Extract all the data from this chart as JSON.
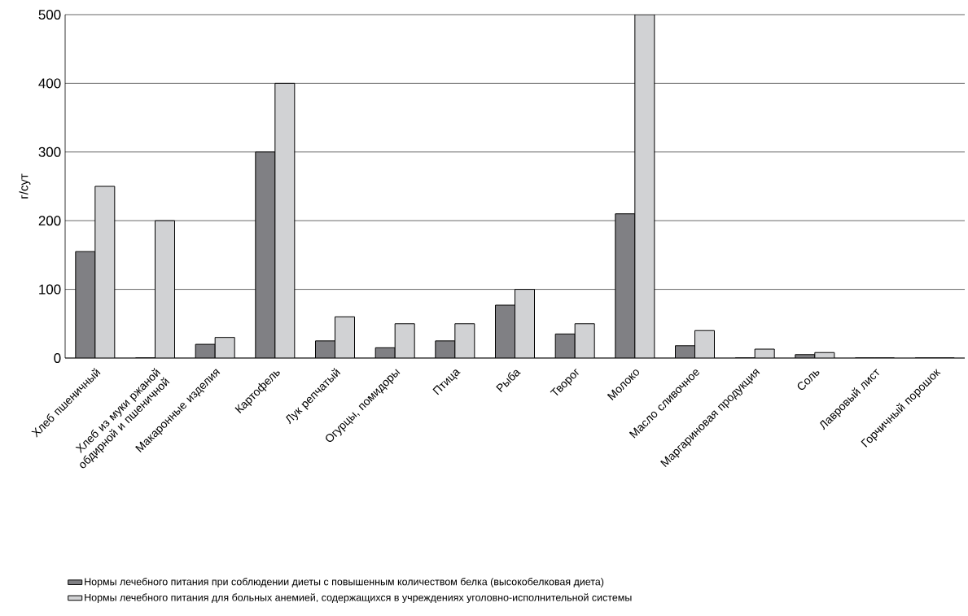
{
  "chart_data": {
    "type": "bar",
    "ylabel": "г/сут",
    "categories": [
      "Хлеб пшеничный",
      "Хлеб из муки ржаной обдирной и пшеничной",
      "Макаронные изделия",
      "Картофель",
      "Лук репчатый",
      "Огурцы, помидоры",
      "Птица",
      "Рыба",
      "Творог",
      "Молоко",
      "Масло сливочное",
      "Маргариновая продукция",
      "Соль",
      "Лавровый лист",
      "Горчичный порошок"
    ],
    "series": [
      {
        "name": "Нормы лечебного питания при соблюдении диеты с повышенным количеством белка (высокобелковая диета)",
        "color": "#808084",
        "values": [
          155,
          0,
          20,
          300,
          25,
          15,
          25,
          77,
          35,
          210,
          18,
          0,
          5,
          0,
          0
        ]
      },
      {
        "name": "Нормы лечебного питания для больных анемией, содержащихся в учреждениях уголовно-исполнительной системы",
        "color": "#d1d2d4",
        "values": [
          250,
          200,
          30,
          400,
          60,
          50,
          50,
          100,
          50,
          500,
          40,
          13,
          8,
          0,
          0
        ]
      }
    ],
    "ylim": [
      0,
      500
    ],
    "yticks": [
      0,
      100,
      200,
      300,
      400,
      500
    ],
    "grid": "y",
    "legend": "bottom left"
  }
}
